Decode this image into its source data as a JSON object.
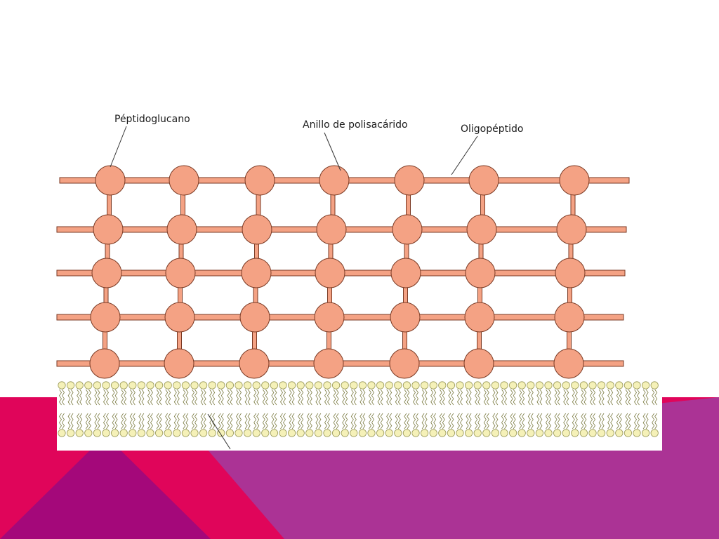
{
  "labels": {
    "peptidoglycan": "Péptidoglucano",
    "polysaccharide_ring": "Anillo de polisacárido",
    "oligopeptide": "Oligopéptido"
  },
  "colors": {
    "background": "#ffffff",
    "accent_red": "#e0055a",
    "accent_magenta": "#a4087a",
    "accent_purple": "#ab3395",
    "ring_fill": "#f4a284",
    "ring_stroke": "#7a3a24",
    "bar_fill": "#f4a284",
    "bar_stroke": "#7a3a24",
    "lipid_head_fill": "#f5f1b8",
    "lipid_head_stroke": "#9a9a5a",
    "lipid_tail_stroke": "#7a7a40",
    "leader_line": "#333333"
  }
}
